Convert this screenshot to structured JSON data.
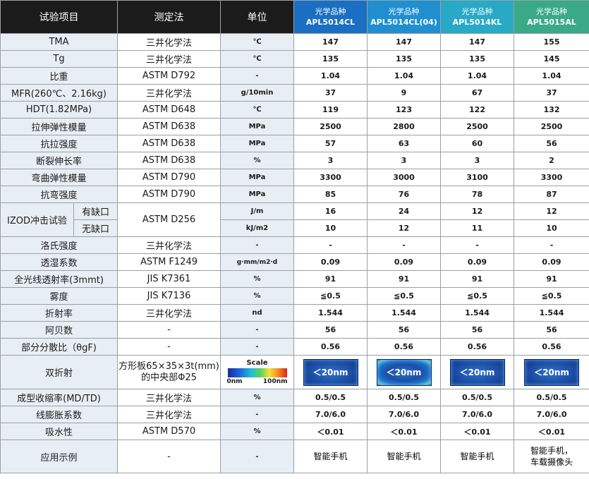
{
  "header": {
    "item": "试验项目",
    "method": "测定法",
    "unit": "单位",
    "grades": [
      {
        "label": "光学品种",
        "name": "APL5014CL"
      },
      {
        "label": "光学品种",
        "name": "APL5014CL(04)"
      },
      {
        "label": "光学品种",
        "name": "APL5014KL"
      },
      {
        "label": "光学品种",
        "name": "APL5015AL"
      }
    ]
  },
  "rows": [
    {
      "item": "TMA",
      "method": "三井化学法",
      "unit": "℃",
      "values": [
        "147",
        "147",
        "147",
        "155"
      ]
    },
    {
      "item": "Tg",
      "method": "三井化学法",
      "unit": "℃",
      "values": [
        "135",
        "135",
        "135",
        "145"
      ]
    },
    {
      "item": "比重",
      "method": "ASTM D792",
      "unit": "-",
      "values": [
        "1.04",
        "1.04",
        "1.04",
        "1.04"
      ]
    },
    {
      "item": "MFR(260℃、2.16kg)",
      "method": "三井化学法",
      "unit": "g/10min",
      "values": [
        "37",
        "9",
        "67",
        "37"
      ]
    },
    {
      "item": "HDT(1.82MPa)",
      "method": "ASTM D648",
      "unit": "℃",
      "values": [
        "119",
        "123",
        "122",
        "132"
      ]
    },
    {
      "item": "拉伸弹性模量",
      "method": "ASTM D638",
      "unit": "MPa",
      "values": [
        "2500",
        "2800",
        "2500",
        "2500"
      ]
    },
    {
      "item": "抗拉强度",
      "method": "ASTM D638",
      "unit": "MPa",
      "values": [
        "57",
        "63",
        "60",
        "56"
      ]
    },
    {
      "item": "断裂伸长率",
      "method": "ASTM D638",
      "unit": "%",
      "values": [
        "3",
        "3",
        "3",
        "2"
      ]
    },
    {
      "item": "弯曲弹性模量",
      "method": "ASTM D790",
      "unit": "MPa",
      "values": [
        "3300",
        "3000",
        "3100",
        "3300"
      ]
    },
    {
      "item": "抗弯强度",
      "method": "ASTM D790",
      "unit": "MPa",
      "values": [
        "85",
        "76",
        "78",
        "87"
      ]
    }
  ],
  "izod": {
    "item": "IZOD冲击试验",
    "method": "ASTM D256",
    "sub": [
      {
        "label": "有缺口",
        "unit": "J/m",
        "values": [
          "16",
          "24",
          "12",
          "12"
        ]
      },
      {
        "label": "无缺口",
        "unit": "kJ/m2",
        "values": [
          "10",
          "12",
          "11",
          "10"
        ]
      }
    ]
  },
  "rows2": [
    {
      "item": "洛氏强度",
      "method": "三井化学法",
      "unit": "-",
      "values": [
        "-",
        "-",
        "-",
        "-"
      ]
    },
    {
      "item": "透湿系数",
      "method": "ASTM F1249",
      "unit": "g·mm/m2·d",
      "values": [
        "0.09",
        "0.09",
        "0.09",
        "0.09"
      ]
    },
    {
      "item": "全光线透射率(3mmt)",
      "method": "JIS K7361",
      "unit": "%",
      "values": [
        "91",
        "91",
        "91",
        "91"
      ]
    },
    {
      "item": "雾度",
      "method": "JIS K7136",
      "unit": "%",
      "values": [
        "≦0.5",
        "≦0.5",
        "≦0.5",
        "≦0.5"
      ]
    },
    {
      "item": "折射率",
      "method": "三井化学法",
      "unit": "nd",
      "values": [
        "1.544",
        "1.544",
        "1.544",
        "1.544"
      ]
    },
    {
      "item": "阿贝数",
      "method": "-",
      "unit": "-",
      "values": [
        "56",
        "56",
        "56",
        "56"
      ]
    },
    {
      "item": "部分分散比（θgF)",
      "method": "-",
      "unit": "-",
      "values": [
        "0.56",
        "0.56",
        "0.56",
        "0.56"
      ]
    }
  ],
  "birefringence": {
    "item": "双折射",
    "method_line1": "方形板65×35×3t(mm)",
    "method_line2": "的中央部Φ25",
    "scale_title": "Scale",
    "scale_min": "0nm",
    "scale_max": "100nm",
    "values": [
      "＜20nm",
      "＜20nm",
      "＜20nm",
      "＜20nm"
    ]
  },
  "rows3": [
    {
      "item": "成型收缩率(MD/TD)",
      "method": "三井化学法",
      "unit": "%",
      "values": [
        "0.5/0.5",
        "0.5/0.5",
        "0.5/0.5",
        "0.5/0.5"
      ]
    },
    {
      "item": "线膨胀系数",
      "method": "三井化学法",
      "unit": "-",
      "values": [
        "7.0/6.0",
        "7.0/6.0",
        "7.0/6.0",
        "7.0/6.0"
      ]
    },
    {
      "item": "吸水性",
      "method": "ASTM D570",
      "unit": "%",
      "values": [
        "＜0.01",
        "＜0.01",
        "＜0.01",
        "＜0.01"
      ]
    }
  ],
  "application": {
    "item": "应用示例",
    "method": "-",
    "unit": "-",
    "values": [
      "智能手机",
      "智能手机",
      "智能手机",
      "智能手机，"
    ],
    "value4_line2": "车载摄像头"
  },
  "colors": {
    "header_dark": "#1b1b1b",
    "blue1": "#1a6fc2",
    "blue2": "#1f8fd0",
    "teal": "#28a9c5",
    "green": "#3aa988",
    "light_row": "#e8eff4"
  }
}
